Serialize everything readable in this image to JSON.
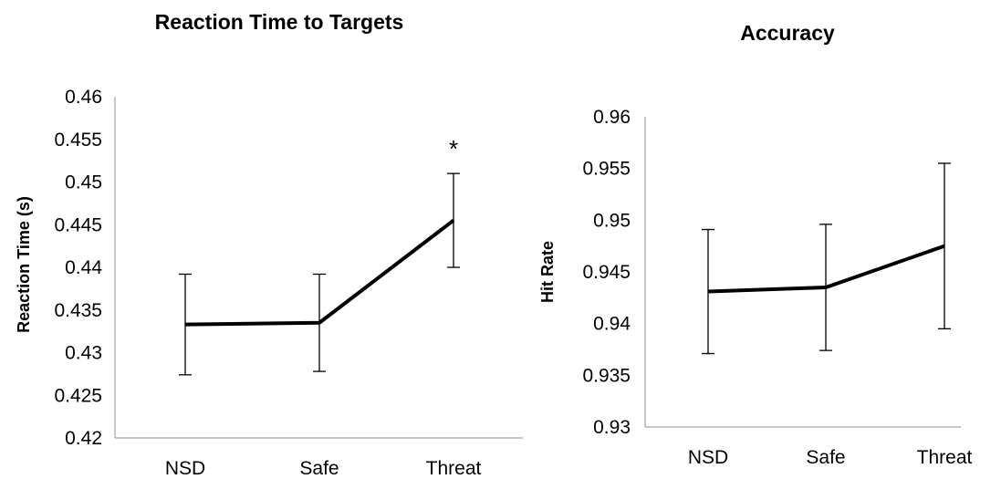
{
  "chart_data": [
    {
      "type": "line",
      "title": "Reaction Time to Targets",
      "xlabel": "",
      "ylabel": "Reaction Time (s)",
      "categories": [
        "NSD",
        "Safe",
        "Threat"
      ],
      "series": [
        {
          "values": [
            0.4333,
            0.4335,
            0.4455
          ],
          "error": [
            0.0059,
            0.0057,
            0.0055
          ]
        }
      ],
      "ylim": [
        0.42,
        0.46
      ],
      "yticks": [
        "0.42",
        "0.425",
        "0.43",
        "0.435",
        "0.44",
        "0.445",
        "0.45",
        "0.455",
        "0.46"
      ],
      "annotations": [
        {
          "text": "*",
          "category": "Threat"
        }
      ],
      "grid": false
    },
    {
      "type": "line",
      "title": "Accuracy",
      "xlabel": "",
      "ylabel": "Hit Rate",
      "categories": [
        "NSD",
        "Safe",
        "Threat"
      ],
      "series": [
        {
          "values": [
            0.9431,
            0.9435,
            0.9475
          ],
          "error": [
            0.006,
            0.0061,
            0.008
          ]
        }
      ],
      "ylim": [
        0.93,
        0.96
      ],
      "yticks": [
        "0.93",
        "0.935",
        "0.94",
        "0.945",
        "0.95",
        "0.955",
        "0.96"
      ],
      "grid": false
    }
  ]
}
